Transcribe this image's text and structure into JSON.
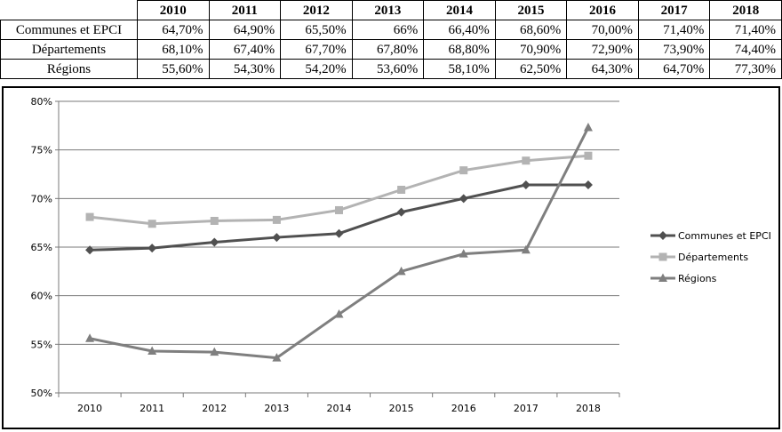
{
  "table": {
    "years": [
      "2010",
      "2011",
      "2012",
      "2013",
      "2014",
      "2015",
      "2016",
      "2017",
      "2018"
    ],
    "rows": [
      {
        "label": "Communes et EPCI",
        "cells": [
          "64,70%",
          "64,90%",
          "65,50%",
          "66%",
          "66,40%",
          "68,60%",
          "70,00%",
          "71,40%",
          "71,40%"
        ]
      },
      {
        "label": "Départements",
        "cells": [
          "68,10%",
          "67,40%",
          "67,70%",
          "67,80%",
          "68,80%",
          "70,90%",
          "72,90%",
          "73,90%",
          "74,40%"
        ]
      },
      {
        "label": "Régions",
        "cells": [
          "55,60%",
          "54,30%",
          "54,20%",
          "53,60%",
          "58,10%",
          "62,50%",
          "64,30%",
          "64,70%",
          "77,30%"
        ]
      }
    ]
  },
  "chart_data": {
    "type": "line",
    "x": [
      "2010",
      "2011",
      "2012",
      "2013",
      "2014",
      "2015",
      "2016",
      "2017",
      "2018"
    ],
    "ylim": [
      50,
      80
    ],
    "yticks": [
      50,
      55,
      60,
      65,
      70,
      75,
      80
    ],
    "ytick_labels": [
      "50%",
      "55%",
      "60%",
      "65%",
      "70%",
      "75%",
      "80%"
    ],
    "grid": "horizontal",
    "legend_position": "right",
    "series": [
      {
        "name": "Communes et EPCI",
        "color": "#505050",
        "marker": "diamond",
        "values": [
          64.7,
          64.9,
          65.5,
          66.0,
          66.4,
          68.6,
          70.0,
          71.4,
          71.4
        ]
      },
      {
        "name": "Départements",
        "color": "#b3b3b3",
        "marker": "square",
        "values": [
          68.1,
          67.4,
          67.7,
          67.8,
          68.8,
          70.9,
          72.9,
          73.9,
          74.4
        ]
      },
      {
        "name": "Régions",
        "color": "#7f7f7f",
        "marker": "triangle",
        "values": [
          55.6,
          54.3,
          54.2,
          53.6,
          58.1,
          62.5,
          64.3,
          64.7,
          77.3
        ]
      }
    ]
  }
}
